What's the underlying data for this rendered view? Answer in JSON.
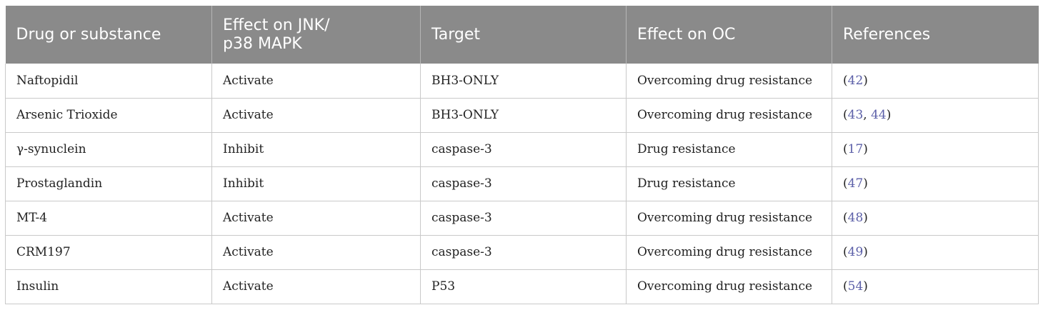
{
  "table": {
    "headers": [
      "Drug or substance",
      "Effect on JNK/\np38 MAPK",
      "Target",
      "Effect on OC",
      "References"
    ],
    "rows": [
      {
        "drug": "Naftopidil",
        "effect": "Activate",
        "target": "BH3-ONLY",
        "oc": "Overcoming drug resistance",
        "refs": [
          "42"
        ]
      },
      {
        "drug": "Arsenic Trioxide",
        "effect": "Activate",
        "target": "BH3-ONLY",
        "oc": "Overcoming drug resistance",
        "refs": [
          "43",
          "44"
        ]
      },
      {
        "drug": "γ-synuclein",
        "effect": "Inhibit",
        "target": "caspase-3",
        "oc": "Drug resistance",
        "refs": [
          "17"
        ]
      },
      {
        "drug": "Prostaglandin",
        "effect": "Inhibit",
        "target": "caspase-3",
        "oc": "Drug resistance",
        "refs": [
          "47"
        ]
      },
      {
        "drug": "MT-4",
        "effect": "Activate",
        "target": "caspase-3",
        "oc": "Overcoming drug resistance",
        "refs": [
          "48"
        ]
      },
      {
        "drug": "CRM197",
        "effect": "Activate",
        "target": "caspase-3",
        "oc": "Overcoming drug resistance",
        "refs": [
          "49"
        ]
      },
      {
        "drug": "Insulin",
        "effect": "Activate",
        "target": "P53",
        "oc": "Overcoming drug resistance",
        "refs": [
          "54"
        ]
      }
    ]
  }
}
